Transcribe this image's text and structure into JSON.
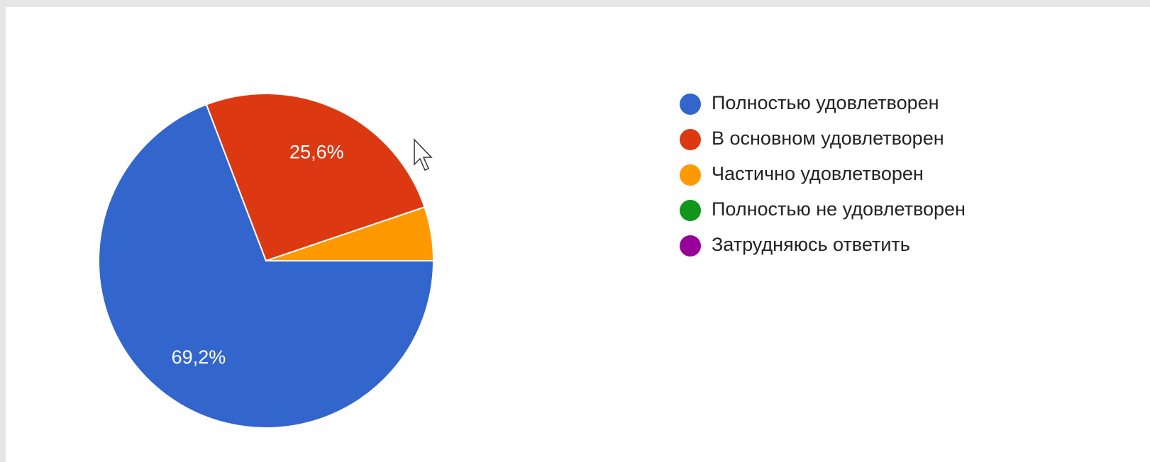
{
  "chart_data": {
    "type": "pie",
    "categories": [
      "Полностью удовлетворен",
      "В основном удовлетворен",
      "Частично удовлетворен",
      "Полностью не удовлетворен",
      "Затрудняюсь ответить"
    ],
    "values": [
      69.2,
      25.6,
      5.2,
      0,
      0
    ],
    "value_labels": [
      "69,2%",
      "25,6%",
      null,
      null,
      null
    ],
    "colors": [
      "#3366cc",
      "#dc3912",
      "#ff9900",
      "#109618",
      "#990099"
    ],
    "legend": "right"
  }
}
